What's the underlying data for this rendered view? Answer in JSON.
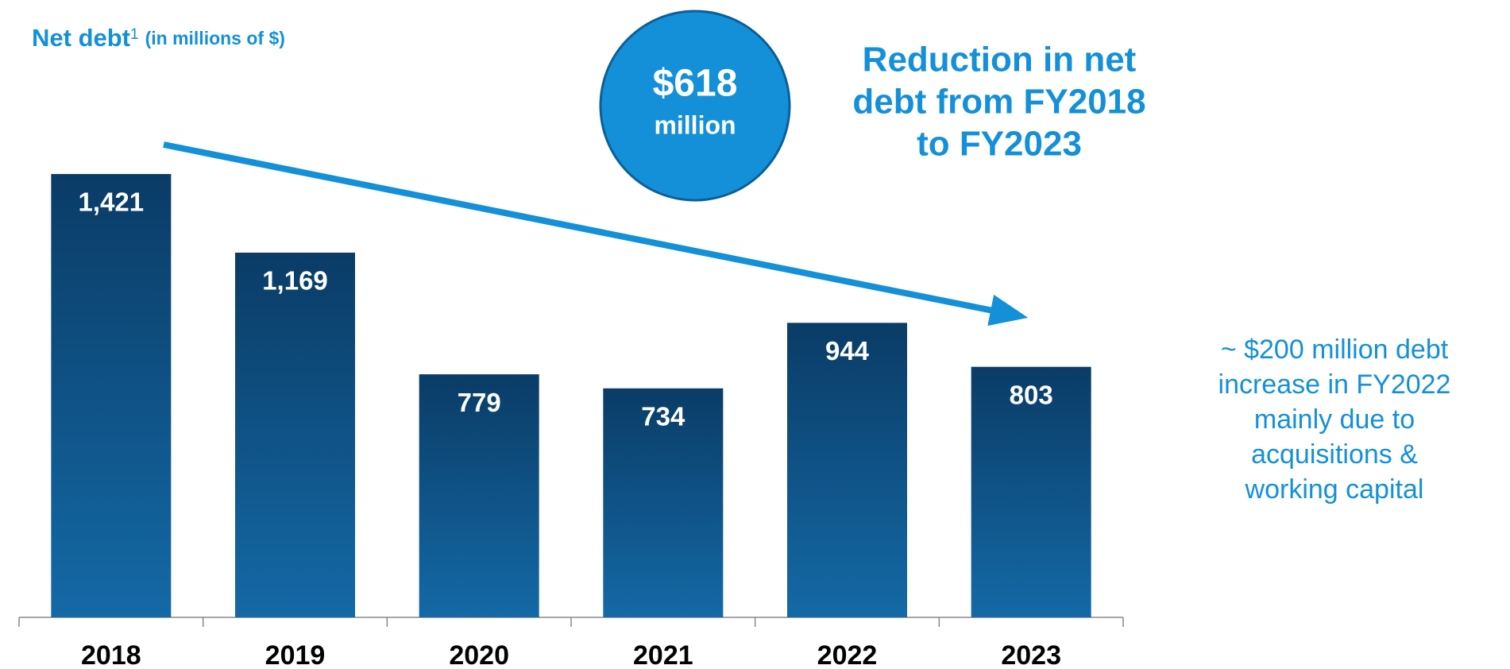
{
  "chart_data": {
    "type": "bar",
    "title": "Net debt",
    "title_superscript": "1",
    "subtitle": "(in millions of $)",
    "categories": [
      "2018",
      "2019",
      "2020",
      "2021",
      "2022",
      "2023"
    ],
    "values": [
      1421,
      1169,
      779,
      734,
      944,
      803
    ],
    "value_labels": [
      "1,421",
      "1,169",
      "779",
      "734",
      "944",
      "803"
    ],
    "color": "#0a3c66",
    "ylim": [
      0,
      1500
    ],
    "callout_value": "$618",
    "callout_unit": "million",
    "headline": [
      "Reduction in net",
      "debt from FY2018",
      "to FY2023"
    ],
    "note": [
      "~ $200 million debt",
      "increase in FY2022",
      "mainly due to",
      "acquisitions &",
      "working capital"
    ]
  }
}
